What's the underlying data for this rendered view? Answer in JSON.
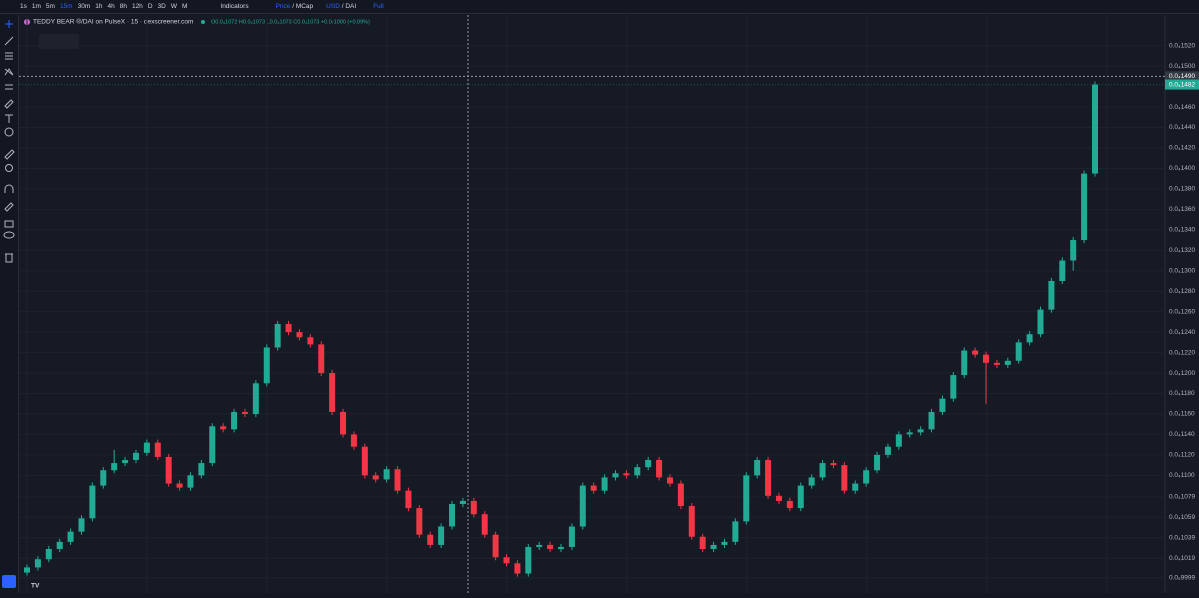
{
  "toolbar": {
    "intervals": [
      "1s",
      "1m",
      "5m",
      "15m",
      "30m",
      "1h",
      "4h",
      "8h",
      "12h",
      "D",
      "3D",
      "W",
      "M"
    ],
    "indicators": "Indicators",
    "price": "Price",
    "sep1": "/",
    "mcap": "MCap",
    "usd": "USD",
    "sep2": "/",
    "dai": "DAI",
    "full": "Full"
  },
  "chart_data": {
    "type": "candlestick",
    "title": "TEDDY BEAR ®/DAI on PulseX · 15 · dexscreener.com",
    "ohlc_readout": "O0.0₄1072 H0.0₄1073 L0.0₄1073 C0.0₄1073 +0.0₇1000 (+0.09%)",
    "up_color": "#22ab94",
    "down_color": "#f23645",
    "grid": true,
    "ylim": [
      9.85e-06,
      1.55e-05
    ],
    "yticks": [
      {
        "value": 1.52e-05,
        "label": "0.0₄1520"
      },
      {
        "value": 1.5e-05,
        "label": "0.0₄1500"
      },
      {
        "value": 1.46e-05,
        "label": "0.0₄1460"
      },
      {
        "value": 1.44e-05,
        "label": "0.0₄1440"
      },
      {
        "value": 1.42e-05,
        "label": "0.0₄1420"
      },
      {
        "value": 1.4e-05,
        "label": "0.0₄1400"
      },
      {
        "value": 1.38e-05,
        "label": "0.0₄1380"
      },
      {
        "value": 1.36e-05,
        "label": "0.0₄1360"
      },
      {
        "value": 1.34e-05,
        "label": "0.0₄1340"
      },
      {
        "value": 1.32e-05,
        "label": "0.0₄1320"
      },
      {
        "value": 1.3e-05,
        "label": "0.0₄1300"
      },
      {
        "value": 1.28e-05,
        "label": "0.0₄1280"
      },
      {
        "value": 1.26e-05,
        "label": "0.0₄1260"
      },
      {
        "value": 1.24e-05,
        "label": "0.0₄1240"
      },
      {
        "value": 1.22e-05,
        "label": "0.0₄1220"
      },
      {
        "value": 1.2e-05,
        "label": "0.0₄1200"
      },
      {
        "value": 1.18e-05,
        "label": "0.0₄1180"
      },
      {
        "value": 1.16e-05,
        "label": "0.0₄1160"
      },
      {
        "value": 1.14e-05,
        "label": "0.0₄1140"
      },
      {
        "value": 1.12e-05,
        "label": "0.0₄1120"
      },
      {
        "value": 1.1e-05,
        "label": "0.0₄1100"
      },
      {
        "value": 1.079e-05,
        "label": "0.0₄1079"
      },
      {
        "value": 1.059e-05,
        "label": "0.0₄1059"
      },
      {
        "value": 1.039e-05,
        "label": "0.0₄1039"
      },
      {
        "value": 1.019e-05,
        "label": "0.0₄1019"
      },
      {
        "value": 9.999e-06,
        "label": "0.0₅9999"
      }
    ],
    "crosshair": {
      "value": 1.49e-05,
      "label": "0.0₄1490"
    },
    "last_price": {
      "value": 1.482e-05,
      "label": "0.0₄1482"
    },
    "ohlc": [
      [
        1.005e-05,
        1.013e-05,
        1.002e-05,
        1.01e-05
      ],
      [
        1.01e-05,
        1.021e-05,
        1.007e-05,
        1.018e-05
      ],
      [
        1.018e-05,
        1.031e-05,
        1.015e-05,
        1.028e-05
      ],
      [
        1.028e-05,
        1.038e-05,
        1.025e-05,
        1.035e-05
      ],
      [
        1.035e-05,
        1.048e-05,
        1.032e-05,
        1.045e-05
      ],
      [
        1.045e-05,
        1.061e-05,
        1.042e-05,
        1.058e-05
      ],
      [
        1.058e-05,
        1.093e-05,
        1.055e-05,
        1.09e-05
      ],
      [
        1.09e-05,
        1.108e-05,
        1.087e-05,
        1.105e-05
      ],
      [
        1.105e-05,
        1.125e-05,
        1.102e-05,
        1.112e-05
      ],
      [
        1.112e-05,
        1.118e-05,
        1.109e-05,
        1.115e-05
      ],
      [
        1.115e-05,
        1.125e-05,
        1.112e-05,
        1.122e-05
      ],
      [
        1.122e-05,
        1.135e-05,
        1.119e-05,
        1.132e-05
      ],
      [
        1.132e-05,
        1.135e-05,
        1.115e-05,
        1.118e-05
      ],
      [
        1.118e-05,
        1.121e-05,
        1.089e-05,
        1.092e-05
      ],
      [
        1.092e-05,
        1.095e-05,
        1.085e-05,
        1.088e-05
      ],
      [
        1.088e-05,
        1.103e-05,
        1.085e-05,
        1.1e-05
      ],
      [
        1.1e-05,
        1.115e-05,
        1.097e-05,
        1.112e-05
      ],
      [
        1.112e-05,
        1.151e-05,
        1.109e-05,
        1.148e-05
      ],
      [
        1.148e-05,
        1.151e-05,
        1.142e-05,
        1.145e-05
      ],
      [
        1.145e-05,
        1.165e-05,
        1.142e-05,
        1.162e-05
      ],
      [
        1.162e-05,
        1.165e-05,
        1.157e-05,
        1.16e-05
      ],
      [
        1.16e-05,
        1.193e-05,
        1.157e-05,
        1.19e-05
      ],
      [
        1.19e-05,
        1.228e-05,
        1.187e-05,
        1.225e-05
      ],
      [
        1.225e-05,
        1.251e-05,
        1.222e-05,
        1.248e-05
      ],
      [
        1.248e-05,
        1.251e-05,
        1.237e-05,
        1.24e-05
      ],
      [
        1.24e-05,
        1.243e-05,
        1.232e-05,
        1.235e-05
      ],
      [
        1.235e-05,
        1.238e-05,
        1.225e-05,
        1.228e-05
      ],
      [
        1.228e-05,
        1.231e-05,
        1.197e-05,
        1.2e-05
      ],
      [
        1.2e-05,
        1.203e-05,
        1.159e-05,
        1.162e-05
      ],
      [
        1.162e-05,
        1.165e-05,
        1.137e-05,
        1.14e-05
      ],
      [
        1.14e-05,
        1.143e-05,
        1.125e-05,
        1.128e-05
      ],
      [
        1.128e-05,
        1.131e-05,
        1.097e-05,
        1.1e-05
      ],
      [
        1.1e-05,
        1.103e-05,
        1.093e-05,
        1.096e-05
      ],
      [
        1.096e-05,
        1.109e-05,
        1.093e-05,
        1.106e-05
      ],
      [
        1.106e-05,
        1.109e-05,
        1.082e-05,
        1.085e-05
      ],
      [
        1.085e-05,
        1.088e-05,
        1.065e-05,
        1.068e-05
      ],
      [
        1.068e-05,
        1.071e-05,
        1.039e-05,
        1.042e-05
      ],
      [
        1.042e-05,
        1.045e-05,
        1.029e-05,
        1.032e-05
      ],
      [
        1.032e-05,
        1.053e-05,
        1.029e-05,
        1.05e-05
      ],
      [
        1.05e-05,
        1.075e-05,
        1.047e-05,
        1.072e-05
      ],
      [
        1.072e-05,
        1.078e-05,
        1.069e-05,
        1.075e-05
      ],
      [
        1.075e-05,
        1.078e-05,
        1.059e-05,
        1.062e-05
      ],
      [
        1.062e-05,
        1.065e-05,
        1.039e-05,
        1.042e-05
      ],
      [
        1.042e-05,
        1.045e-05,
        1.017e-05,
        1.02e-05
      ],
      [
        1.02e-05,
        1.023e-05,
        1.011e-05,
        1.014e-05
      ],
      [
        1.014e-05,
        1.017e-05,
        1.001e-05,
        1.004e-05
      ],
      [
        1.004e-05,
        1.033e-05,
        1.001e-05,
        1.03e-05
      ],
      [
        1.03e-05,
        1.035e-05,
        1.027e-05,
        1.032e-05
      ],
      [
        1.032e-05,
        1.035e-05,
        1.025e-05,
        1.028e-05
      ],
      [
        1.028e-05,
        1.033e-05,
        1.025e-05,
        1.03e-05
      ],
      [
        1.03e-05,
        1.053e-05,
        1.027e-05,
        1.05e-05
      ],
      [
        1.05e-05,
        1.093e-05,
        1.047e-05,
        1.09e-05
      ],
      [
        1.09e-05,
        1.093e-05,
        1.082e-05,
        1.085e-05
      ],
      [
        1.085e-05,
        1.101e-05,
        1.082e-05,
        1.098e-05
      ],
      [
        1.098e-05,
        1.105e-05,
        1.095e-05,
        1.102e-05
      ],
      [
        1.102e-05,
        1.105e-05,
        1.097e-05,
        1.1e-05
      ],
      [
        1.1e-05,
        1.111e-05,
        1.097e-05,
        1.108e-05
      ],
      [
        1.108e-05,
        1.118e-05,
        1.105e-05,
        1.115e-05
      ],
      [
        1.115e-05,
        1.118e-05,
        1.095e-05,
        1.098e-05
      ],
      [
        1.098e-05,
        1.101e-05,
        1.089e-05,
        1.092e-05
      ],
      [
        1.092e-05,
        1.095e-05,
        1.067e-05,
        1.07e-05
      ],
      [
        1.07e-05,
        1.073e-05,
        1.037e-05,
        1.04e-05
      ],
      [
        1.04e-05,
        1.043e-05,
        1.025e-05,
        1.028e-05
      ],
      [
        1.028e-05,
        1.035e-05,
        1.025e-05,
        1.032e-05
      ],
      [
        1.032e-05,
        1.038e-05,
        1.029e-05,
        1.035e-05
      ],
      [
        1.035e-05,
        1.058e-05,
        1.032e-05,
        1.055e-05
      ],
      [
        1.055e-05,
        1.103e-05,
        1.052e-05,
        1.1e-05
      ],
      [
        1.1e-05,
        1.118e-05,
        1.097e-05,
        1.115e-05
      ],
      [
        1.115e-05,
        1.118e-05,
        1.077e-05,
        1.08e-05
      ],
      [
        1.08e-05,
        1.083e-05,
        1.072e-05,
        1.075e-05
      ],
      [
        1.075e-05,
        1.078e-05,
        1.065e-05,
        1.068e-05
      ],
      [
        1.068e-05,
        1.093e-05,
        1.065e-05,
        1.09e-05
      ],
      [
        1.09e-05,
        1.101e-05,
        1.087e-05,
        1.098e-05
      ],
      [
        1.098e-05,
        1.115e-05,
        1.095e-05,
        1.112e-05
      ],
      [
        1.112e-05,
        1.115e-05,
        1.107e-05,
        1.11e-05
      ],
      [
        1.11e-05,
        1.113e-05,
        1.082e-05,
        1.085e-05
      ],
      [
        1.085e-05,
        1.095e-05,
        1.082e-05,
        1.092e-05
      ],
      [
        1.092e-05,
        1.108e-05,
        1.089e-05,
        1.105e-05
      ],
      [
        1.105e-05,
        1.123e-05,
        1.102e-05,
        1.12e-05
      ],
      [
        1.12e-05,
        1.131e-05,
        1.117e-05,
        1.128e-05
      ],
      [
        1.128e-05,
        1.143e-05,
        1.125e-05,
        1.14e-05
      ],
      [
        1.14e-05,
        1.145e-05,
        1.137e-05,
        1.142e-05
      ],
      [
        1.142e-05,
        1.148e-05,
        1.139e-05,
        1.145e-05
      ],
      [
        1.145e-05,
        1.165e-05,
        1.142e-05,
        1.162e-05
      ],
      [
        1.162e-05,
        1.178e-05,
        1.159e-05,
        1.175e-05
      ],
      [
        1.175e-05,
        1.201e-05,
        1.172e-05,
        1.198e-05
      ],
      [
        1.198e-05,
        1.225e-05,
        1.195e-05,
        1.222e-05
      ],
      [
        1.222e-05,
        1.225e-05,
        1.215e-05,
        1.218e-05
      ],
      [
        1.218e-05,
        1.221e-05,
        1.17e-05,
        1.21e-05
      ],
      [
        1.21e-05,
        1.213e-05,
        1.205e-05,
        1.208e-05
      ],
      [
        1.208e-05,
        1.215e-05,
        1.205e-05,
        1.212e-05
      ],
      [
        1.212e-05,
        1.233e-05,
        1.209e-05,
        1.23e-05
      ],
      [
        1.23e-05,
        1.241e-05,
        1.227e-05,
        1.238e-05
      ],
      [
        1.238e-05,
        1.265e-05,
        1.235e-05,
        1.262e-05
      ],
      [
        1.262e-05,
        1.293e-05,
        1.259e-05,
        1.29e-05
      ],
      [
        1.29e-05,
        1.313e-05,
        1.287e-05,
        1.31e-05
      ],
      [
        1.31e-05,
        1.333e-05,
        1.3e-05,
        1.33e-05
      ],
      [
        1.33e-05,
        1.398e-05,
        1.327e-05,
        1.395e-05
      ],
      [
        1.395e-05,
        1.485e-05,
        1.392e-05,
        1.482e-05
      ]
    ]
  }
}
